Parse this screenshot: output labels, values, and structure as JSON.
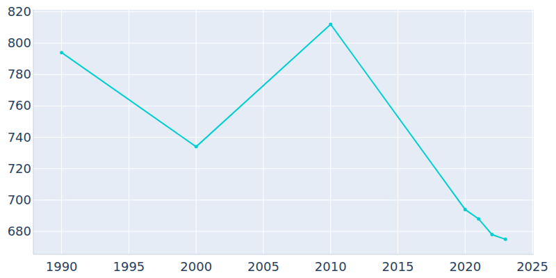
{
  "chart_data": {
    "type": "line",
    "x": [
      1990,
      2000,
      2010,
      2020,
      2021,
      2022,
      2023
    ],
    "values": [
      794,
      734,
      812,
      694,
      688,
      678,
      675
    ],
    "color": "#00ced1",
    "marker": "circle",
    "xlim": [
      1987.9,
      2025.1
    ],
    "xticks": [
      1990,
      1995,
      2000,
      2005,
      2010,
      2015,
      2020,
      2025
    ],
    "ylim": [
      665.4,
      821.3
    ],
    "yticks": [
      680,
      700,
      720,
      740,
      760,
      780,
      800,
      820
    ],
    "grid": true
  }
}
